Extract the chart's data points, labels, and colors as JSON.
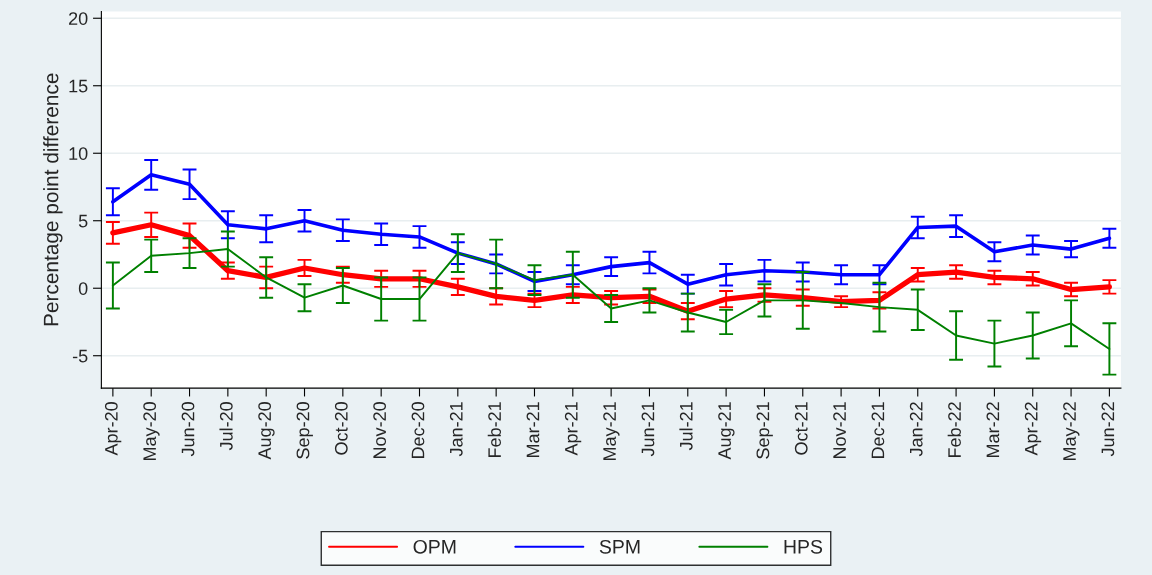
{
  "chart_data": {
    "type": "line",
    "ylabel": "Percentage point difference",
    "categories": [
      "Apr-20",
      "May-20",
      "Jun-20",
      "Jul-20",
      "Aug-20",
      "Sep-20",
      "Oct-20",
      "Nov-20",
      "Dec-20",
      "Jan-21",
      "Feb-21",
      "Mar-21",
      "Apr-21",
      "May-21",
      "Jun-21",
      "Jul-21",
      "Aug-21",
      "Sep-21",
      "Oct-21",
      "Nov-21",
      "Dec-21",
      "Jan-22",
      "Feb-22",
      "Mar-22",
      "Apr-22",
      "May-22",
      "Jun-22"
    ],
    "series": [
      {
        "name": "OPM",
        "color": "#ff0000",
        "values": [
          4.1,
          4.7,
          3.9,
          1.3,
          0.8,
          1.5,
          1.0,
          0.7,
          0.7,
          0.1,
          -0.6,
          -0.9,
          -0.5,
          -0.7,
          -0.6,
          -1.7,
          -0.8,
          -0.5,
          -0.7,
          -1.0,
          -0.9,
          1.0,
          1.2,
          0.8,
          0.7,
          -0.1,
          0.1
        ],
        "errors": [
          0.8,
          0.9,
          0.9,
          0.6,
          0.8,
          0.6,
          0.6,
          0.6,
          0.6,
          0.6,
          0.6,
          0.5,
          0.6,
          0.5,
          0.5,
          0.6,
          0.6,
          0.5,
          0.6,
          0.4,
          0.6,
          0.5,
          0.5,
          0.5,
          0.5,
          0.5,
          0.5
        ]
      },
      {
        "name": "SPM",
        "color": "#0000ff",
        "values": [
          6.4,
          8.4,
          7.7,
          4.7,
          4.4,
          5.0,
          4.3,
          4.0,
          3.8,
          2.6,
          1.8,
          0.5,
          1.0,
          1.6,
          1.9,
          0.3,
          1.0,
          1.3,
          1.2,
          1.0,
          1.0,
          4.5,
          4.6,
          2.7,
          3.2,
          2.9,
          3.7
        ],
        "errors": [
          1.0,
          1.1,
          1.1,
          1.0,
          1.0,
          0.8,
          0.8,
          0.8,
          0.8,
          0.8,
          0.7,
          0.7,
          0.7,
          0.7,
          0.8,
          0.7,
          0.8,
          0.8,
          0.7,
          0.7,
          0.7,
          0.8,
          0.8,
          0.7,
          0.7,
          0.6,
          0.7
        ]
      },
      {
        "name": "HPS",
        "color": "#008000",
        "values": [
          0.2,
          2.4,
          2.6,
          2.9,
          0.8,
          -0.7,
          0.2,
          -0.8,
          -0.8,
          2.6,
          1.8,
          0.6,
          1.0,
          -1.5,
          -0.9,
          -1.8,
          -2.5,
          -0.9,
          -0.9,
          -1.1,
          -1.4,
          -1.6,
          -3.5,
          -4.1,
          -3.5,
          -2.6,
          -4.5
        ],
        "errors": [
          1.7,
          1.2,
          1.1,
          1.3,
          1.5,
          1.0,
          1.3,
          1.6,
          1.6,
          1.4,
          1.8,
          1.1,
          1.7,
          1.0,
          0.9,
          1.4,
          0.9,
          1.2,
          2.1,
          null,
          1.8,
          1.5,
          1.8,
          1.7,
          1.7,
          1.7,
          1.9
        ]
      }
    ],
    "ylim": [
      -7.4,
      20.5
    ],
    "yticks": [
      -5,
      0,
      5,
      10,
      15,
      20
    ],
    "grid": "y",
    "legend": "bottom",
    "marker": "none",
    "line_style": "solid"
  }
}
